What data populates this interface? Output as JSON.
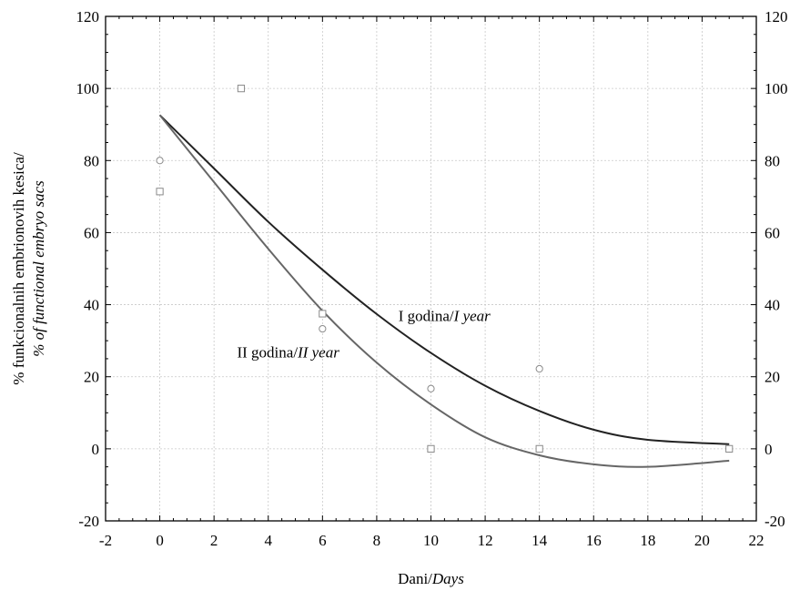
{
  "chart_data": {
    "type": "scatter",
    "xlabel": {
      "plain": "Dani/",
      "italic": "Days"
    },
    "ylabel": {
      "line1": "% funkcionalnih embrionovih kesica/",
      "line2": "% of functional embryo sacs"
    },
    "xlim": [
      -2,
      22
    ],
    "ylim": [
      -20,
      120
    ],
    "xticks": [
      -2,
      0,
      2,
      4,
      6,
      8,
      10,
      12,
      14,
      16,
      18,
      20,
      22
    ],
    "yticks": [
      -20,
      0,
      20,
      40,
      60,
      80,
      100,
      120
    ],
    "grid": true,
    "series": [
      {
        "name": "I godina/I year",
        "marker": "circle",
        "points": [
          [
            0,
            80
          ],
          [
            6,
            33.3
          ],
          [
            10,
            16.7
          ],
          [
            14,
            22.2
          ],
          [
            21,
            0
          ]
        ],
        "fit": {
          "x": [
            0,
            2,
            4,
            6,
            8,
            10,
            12,
            14,
            16,
            18,
            21
          ],
          "y": [
            92.6,
            77.8,
            63.0,
            49.7,
            37.4,
            26.6,
            17.5,
            10.5,
            5.3,
            2.5,
            1.3
          ]
        },
        "color": "#222222"
      },
      {
        "name": "II godina/II year",
        "marker": "square",
        "points": [
          [
            0,
            71.4
          ],
          [
            3,
            100
          ],
          [
            6,
            37.5
          ],
          [
            10,
            0
          ],
          [
            14,
            0
          ],
          [
            21,
            0
          ]
        ],
        "fit": {
          "x": [
            0,
            2,
            4,
            6,
            8,
            10,
            12,
            14,
            16,
            18,
            21
          ],
          "y": [
            92.6,
            74.0,
            55.5,
            38.3,
            23.9,
            12.3,
            3.2,
            -1.8,
            -4.3,
            -5.0,
            -3.3
          ]
        },
        "color": "#666666"
      }
    ],
    "annotations": [
      {
        "series": 0,
        "plain": "I godina/",
        "italic": "I year",
        "x": 8.8,
        "y": 35.5
      },
      {
        "series": 1,
        "plain": "II godina/",
        "italic": "II year",
        "x": 2.85,
        "y": 25.3
      }
    ]
  }
}
